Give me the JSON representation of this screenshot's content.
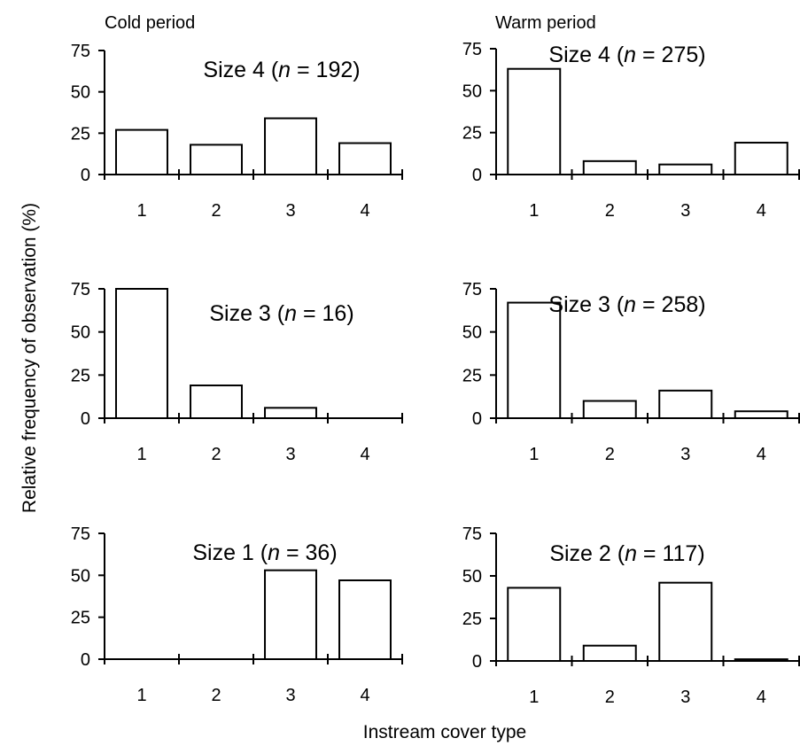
{
  "figure": {
    "ylabel": "Relative frequency of observation (%)",
    "xlabel": "Instream cover type",
    "columns": [
      "Cold period",
      "Warm period"
    ]
  },
  "chart_data": [
    {
      "type": "bar",
      "panel": "cold-size4",
      "column": "Cold period",
      "title_main": "Size 4 (",
      "title_n": "n",
      "title_rest": " = 192)",
      "categories": [
        "1",
        "2",
        "3",
        "4"
      ],
      "values": [
        27,
        18,
        34,
        19
      ],
      "ylim": [
        0,
        75
      ],
      "yticks": [
        "0",
        "25",
        "50",
        "75"
      ]
    },
    {
      "type": "bar",
      "panel": "warm-size4",
      "column": "Warm period",
      "title_main": "Size 4 (",
      "title_n": "n",
      "title_rest": " = 275)",
      "categories": [
        "1",
        "2",
        "3",
        "4"
      ],
      "values": [
        63,
        8,
        6,
        19
      ],
      "ylim": [
        0,
        75
      ],
      "yticks": [
        "0",
        "25",
        "50",
        "75"
      ]
    },
    {
      "type": "bar",
      "panel": "cold-size3",
      "column": "Cold period",
      "title_main": "Size 3 (",
      "title_n": "n",
      "title_rest": " = 16)",
      "categories": [
        "1",
        "2",
        "3",
        "4"
      ],
      "values": [
        75,
        19,
        6,
        0
      ],
      "ylim": [
        0,
        75
      ],
      "yticks": [
        "0",
        "25",
        "50",
        "75"
      ]
    },
    {
      "type": "bar",
      "panel": "warm-size3",
      "column": "Warm period",
      "title_main": "Size 3 (",
      "title_n": "n",
      "title_rest": " = 258)",
      "categories": [
        "1",
        "2",
        "3",
        "4"
      ],
      "values": [
        67,
        10,
        16,
        4
      ],
      "ylim": [
        0,
        75
      ],
      "yticks": [
        "0",
        "25",
        "50",
        "75"
      ]
    },
    {
      "type": "bar",
      "panel": "cold-size1",
      "column": "Cold period",
      "title_main": "Size 1 (",
      "title_n": "n",
      "title_rest": " = 36)",
      "categories": [
        "1",
        "2",
        "3",
        "4"
      ],
      "values": [
        0,
        0,
        53,
        47
      ],
      "ylim": [
        0,
        75
      ],
      "yticks": [
        "0",
        "25",
        "50",
        "75"
      ]
    },
    {
      "type": "bar",
      "panel": "warm-size2",
      "column": "Warm period",
      "title_main": "Size 2 (",
      "title_n": "n",
      "title_rest": " = 117)",
      "categories": [
        "1",
        "2",
        "3",
        "4"
      ],
      "values": [
        43,
        9,
        46,
        1
      ],
      "ylim": [
        0,
        75
      ],
      "yticks": [
        "0",
        "25",
        "50",
        "75"
      ]
    }
  ]
}
